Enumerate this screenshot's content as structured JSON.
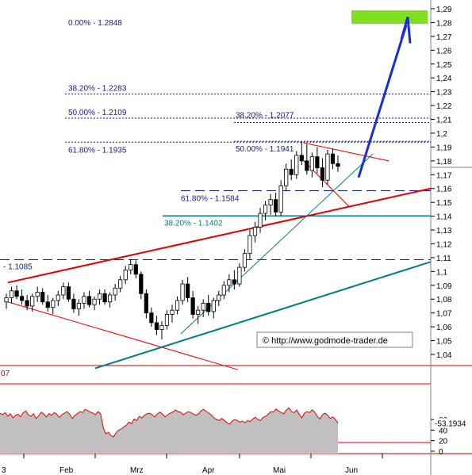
{
  "chart_data": [
    {
      "type": "candlestick",
      "title": "",
      "ylim": [
        1.03,
        1.295
      ],
      "y_ticks": [
        "1,04",
        "1,05",
        "1,06",
        "1,07",
        "1,08",
        "1,09",
        "1,1",
        "1,11",
        "1,12",
        "1,13",
        "1,14",
        "1,15",
        "1,16",
        "1,17",
        "1,18",
        "1,19",
        "1,2",
        "1,21",
        "1,22",
        "1,23",
        "1,24",
        "1,25",
        "1,26",
        "1,27",
        "1,28",
        "1,29"
      ],
      "x_ticks": [
        "3",
        "Feb",
        "Mrz",
        "Apr",
        "Mai",
        "Jun"
      ],
      "grid": false,
      "annotations": [
        {
          "text": "0.00% - 1.2848",
          "level": 1.2848
        },
        {
          "text": "38.20% - 1.2283",
          "level": 1.2283
        },
        {
          "text": "50.00% - 1.2109",
          "level": 1.2109
        },
        {
          "text": "38.20% - 1.2077",
          "level": 1.2077
        },
        {
          "text": "61.80% - 1.1935",
          "level": 1.1935
        },
        {
          "text": "50.00% - 1.1941",
          "level": 1.1941
        },
        {
          "text": "61.80% - 1.1584",
          "level": 1.1584
        },
        {
          "text": "38.20% - 1.1402",
          "level": 1.1402
        },
        {
          "text": "- 1.1085",
          "level": 1.1085
        }
      ],
      "source_label": "http://www.godmode-trader.de",
      "target_zone": {
        "level": 1.2848,
        "color": "#80e020"
      },
      "series": [
        {
          "name": "",
          "values": [
            {
              "o": 1.078,
              "h": 1.084,
              "l": 1.073,
              "c": 1.081
            },
            {
              "o": 1.081,
              "h": 1.089,
              "l": 1.077,
              "c": 1.086
            },
            {
              "o": 1.086,
              "h": 1.09,
              "l": 1.08,
              "c": 1.082
            },
            {
              "o": 1.082,
              "h": 1.087,
              "l": 1.076,
              "c": 1.079
            },
            {
              "o": 1.079,
              "h": 1.083,
              "l": 1.072,
              "c": 1.075
            },
            {
              "o": 1.075,
              "h": 1.084,
              "l": 1.071,
              "c": 1.082
            },
            {
              "o": 1.082,
              "h": 1.089,
              "l": 1.078,
              "c": 1.085
            },
            {
              "o": 1.085,
              "h": 1.088,
              "l": 1.076,
              "c": 1.078
            },
            {
              "o": 1.078,
              "h": 1.083,
              "l": 1.071,
              "c": 1.074
            },
            {
              "o": 1.074,
              "h": 1.081,
              "l": 1.069,
              "c": 1.079
            },
            {
              "o": 1.079,
              "h": 1.086,
              "l": 1.075,
              "c": 1.083
            },
            {
              "o": 1.083,
              "h": 1.092,
              "l": 1.08,
              "c": 1.089
            },
            {
              "o": 1.089,
              "h": 1.092,
              "l": 1.078,
              "c": 1.08
            },
            {
              "o": 1.08,
              "h": 1.084,
              "l": 1.07,
              "c": 1.073
            },
            {
              "o": 1.073,
              "h": 1.08,
              "l": 1.068,
              "c": 1.077
            },
            {
              "o": 1.077,
              "h": 1.085,
              "l": 1.073,
              "c": 1.082
            },
            {
              "o": 1.082,
              "h": 1.086,
              "l": 1.074,
              "c": 1.076
            },
            {
              "o": 1.076,
              "h": 1.082,
              "l": 1.072,
              "c": 1.08
            },
            {
              "o": 1.08,
              "h": 1.087,
              "l": 1.076,
              "c": 1.084
            },
            {
              "o": 1.084,
              "h": 1.087,
              "l": 1.076,
              "c": 1.078
            },
            {
              "o": 1.078,
              "h": 1.085,
              "l": 1.074,
              "c": 1.083
            },
            {
              "o": 1.083,
              "h": 1.091,
              "l": 1.079,
              "c": 1.088
            },
            {
              "o": 1.088,
              "h": 1.097,
              "l": 1.085,
              "c": 1.094
            },
            {
              "o": 1.094,
              "h": 1.104,
              "l": 1.091,
              "c": 1.101
            },
            {
              "o": 1.101,
              "h": 1.109,
              "l": 1.098,
              "c": 1.105
            },
            {
              "o": 1.105,
              "h": 1.108,
              "l": 1.095,
              "c": 1.098
            },
            {
              "o": 1.098,
              "h": 1.1,
              "l": 1.08,
              "c": 1.084
            },
            {
              "o": 1.084,
              "h": 1.087,
              "l": 1.066,
              "c": 1.07
            },
            {
              "o": 1.07,
              "h": 1.074,
              "l": 1.06,
              "c": 1.063
            },
            {
              "o": 1.063,
              "h": 1.068,
              "l": 1.054,
              "c": 1.058
            },
            {
              "o": 1.058,
              "h": 1.064,
              "l": 1.051,
              "c": 1.061
            },
            {
              "o": 1.061,
              "h": 1.072,
              "l": 1.058,
              "c": 1.069
            },
            {
              "o": 1.069,
              "h": 1.076,
              "l": 1.063,
              "c": 1.072
            },
            {
              "o": 1.072,
              "h": 1.082,
              "l": 1.069,
              "c": 1.079
            },
            {
              "o": 1.079,
              "h": 1.094,
              "l": 1.076,
              "c": 1.091
            },
            {
              "o": 1.091,
              "h": 1.096,
              "l": 1.078,
              "c": 1.081
            },
            {
              "o": 1.081,
              "h": 1.086,
              "l": 1.066,
              "c": 1.069
            },
            {
              "o": 1.069,
              "h": 1.075,
              "l": 1.062,
              "c": 1.072
            },
            {
              "o": 1.072,
              "h": 1.08,
              "l": 1.067,
              "c": 1.077
            },
            {
              "o": 1.077,
              "h": 1.083,
              "l": 1.068,
              "c": 1.071
            },
            {
              "o": 1.071,
              "h": 1.081,
              "l": 1.066,
              "c": 1.079
            },
            {
              "o": 1.079,
              "h": 1.086,
              "l": 1.075,
              "c": 1.083
            },
            {
              "o": 1.083,
              "h": 1.093,
              "l": 1.08,
              "c": 1.09
            },
            {
              "o": 1.09,
              "h": 1.098,
              "l": 1.085,
              "c": 1.094
            },
            {
              "o": 1.094,
              "h": 1.101,
              "l": 1.087,
              "c": 1.091
            },
            {
              "o": 1.091,
              "h": 1.106,
              "l": 1.089,
              "c": 1.103
            },
            {
              "o": 1.103,
              "h": 1.116,
              "l": 1.1,
              "c": 1.113
            },
            {
              "o": 1.113,
              "h": 1.13,
              "l": 1.109,
              "c": 1.126
            },
            {
              "o": 1.126,
              "h": 1.136,
              "l": 1.121,
              "c": 1.132
            },
            {
              "o": 1.132,
              "h": 1.146,
              "l": 1.128,
              "c": 1.142
            },
            {
              "o": 1.142,
              "h": 1.151,
              "l": 1.137,
              "c": 1.148
            },
            {
              "o": 1.148,
              "h": 1.156,
              "l": 1.141,
              "c": 1.152
            },
            {
              "o": 1.152,
              "h": 1.157,
              "l": 1.14,
              "c": 1.143
            },
            {
              "o": 1.143,
              "h": 1.166,
              "l": 1.14,
              "c": 1.162
            },
            {
              "o": 1.162,
              "h": 1.178,
              "l": 1.158,
              "c": 1.174
            },
            {
              "o": 1.174,
              "h": 1.181,
              "l": 1.166,
              "c": 1.17
            },
            {
              "o": 1.17,
              "h": 1.187,
              "l": 1.167,
              "c": 1.184
            },
            {
              "o": 1.184,
              "h": 1.194,
              "l": 1.177,
              "c": 1.18
            },
            {
              "o": 1.18,
              "h": 1.192,
              "l": 1.17,
              "c": 1.173
            },
            {
              "o": 1.173,
              "h": 1.186,
              "l": 1.168,
              "c": 1.183
            },
            {
              "o": 1.183,
              "h": 1.19,
              "l": 1.171,
              "c": 1.175
            },
            {
              "o": 1.175,
              "h": 1.182,
              "l": 1.161,
              "c": 1.166
            },
            {
              "o": 1.166,
              "h": 1.188,
              "l": 1.163,
              "c": 1.185
            },
            {
              "o": 1.185,
              "h": 1.189,
              "l": 1.174,
              "c": 1.178
            },
            {
              "o": 1.178,
              "h": 1.184,
              "l": 1.172,
              "c": 1.176
            }
          ]
        }
      ]
    },
    {
      "type": "line",
      "title": "",
      "ylim": [
        0,
        100
      ],
      "y_ticks": [
        "0",
        "20",
        "40",
        "60"
      ],
      "partial_top_label": "07",
      "reference_levels": [
        80,
        20
      ],
      "last_value_label": "53.1934",
      "series": [
        {
          "name": "",
          "values": [
            72,
            69,
            73,
            66,
            71,
            63,
            68,
            70,
            65,
            73,
            76,
            69,
            66,
            71,
            62,
            67,
            74,
            70,
            65,
            71,
            68,
            73,
            70,
            64,
            69,
            72,
            75,
            70,
            62,
            68,
            71,
            75,
            73,
            79,
            77,
            74,
            72,
            69,
            75,
            71,
            45,
            33,
            36,
            30,
            27,
            35,
            40,
            42,
            46,
            49,
            55,
            52,
            61,
            58,
            66,
            63,
            68,
            71,
            72,
            69,
            65,
            71,
            74,
            70,
            65,
            69,
            72,
            74,
            78,
            75,
            74,
            69,
            72,
            75,
            73,
            70,
            68,
            71,
            77,
            79,
            75,
            72,
            68,
            63,
            60,
            58,
            62,
            58,
            54,
            51,
            57,
            60,
            58,
            55,
            57,
            54,
            58,
            56,
            61,
            64,
            60,
            58,
            64,
            66,
            70,
            75,
            74,
            80,
            76,
            73,
            71,
            78,
            82,
            75,
            73,
            78,
            70,
            63,
            72,
            75,
            73,
            78,
            74,
            66,
            61,
            69,
            72,
            68,
            62,
            65,
            60,
            53
          ]
        }
      ]
    }
  ]
}
